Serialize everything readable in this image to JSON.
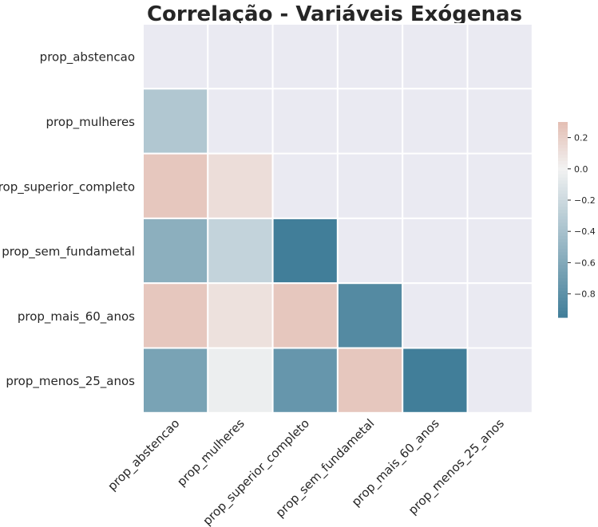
{
  "chart_data": {
    "type": "heatmap",
    "title": "Correlação - Variáveis Exógenas",
    "row_labels": [
      "prop_abstencao",
      "prop_mulheres",
      "prop_superior_completo",
      "prop_sem_fundametal",
      "prop_mais_60_anos",
      "prop_menos_25_anos"
    ],
    "col_labels": [
      "prop_abstencao",
      "prop_mulheres",
      "prop_superior_completo",
      "prop_sem_fundametal",
      "prop_mais_60_anos",
      "prop_menos_25_anos"
    ],
    "mask": "upper triangle including diagonal",
    "values": [
      [
        null,
        null,
        null,
        null,
        null,
        null
      ],
      [
        -0.35,
        null,
        null,
        null,
        null,
        null
      ],
      [
        0.25,
        0.12,
        null,
        null,
        null,
        null
      ],
      [
        -0.55,
        -0.25,
        -0.95,
        null,
        null,
        null
      ],
      [
        0.25,
        0.1,
        0.25,
        -0.85,
        null,
        null
      ],
      [
        -0.65,
        -0.03,
        -0.75,
        0.25,
        -0.95,
        null
      ]
    ],
    "colorbar": {
      "min": -0.95,
      "max": 0.3,
      "ticks": [
        0.2,
        0.0,
        -0.2,
        -0.4,
        -0.6,
        -0.8
      ],
      "tick_labels": [
        "0.2",
        "0.0",
        "−0.2",
        "−0.4",
        "−0.6",
        "−0.8"
      ]
    },
    "colors": {
      "negative_end": "#417e99",
      "center": "#f2f2f2",
      "positive_end": "#e3beb3",
      "masked_background": "#eaeaf2",
      "grid_lines": "#ffffff"
    }
  }
}
